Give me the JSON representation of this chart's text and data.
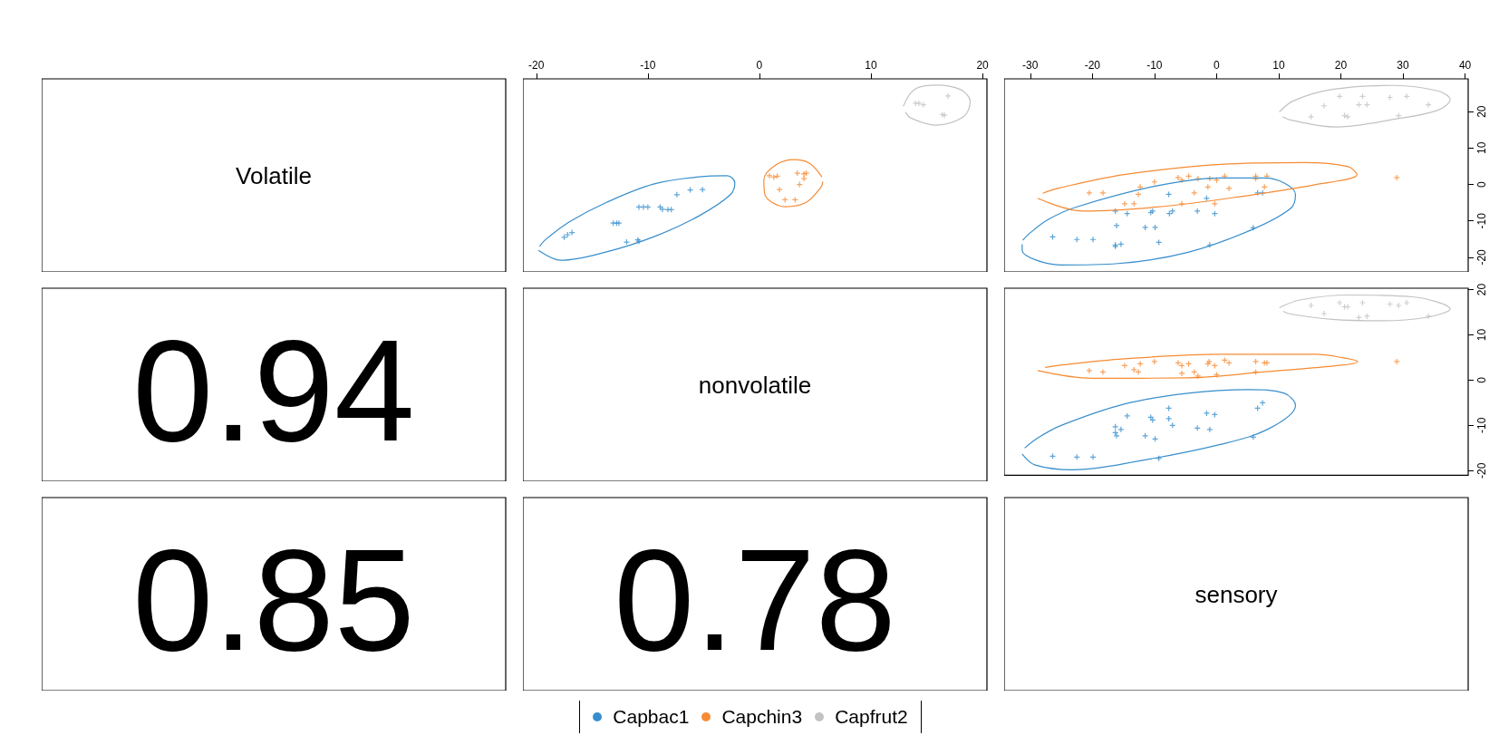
{
  "chart_data": [
    {
      "type": "other",
      "title": "Volatile"
    },
    {
      "type": "scatter",
      "marker": "cross",
      "legend": "bottom",
      "tick_labels": "x",
      "xlim": [
        -21.2,
        20.4
      ],
      "xticks": [
        -20,
        -10,
        0,
        10,
        20
      ],
      "ylim": [
        -24,
        29
      ],
      "yticks": [
        -20,
        -10,
        0,
        10,
        20
      ],
      "series": [
        {
          "name": "Capbac1",
          "color": "#388ecc",
          "x": [
            -17.5,
            -17.2,
            -16.8,
            -13.1,
            -12.8,
            -12.6,
            -11.9,
            -10.9,
            -10.8,
            -10.8,
            -10.4,
            -10.0,
            -8.9,
            -8.7,
            -8.2,
            -7.9,
            -7.4,
            -6.2,
            -5.1
          ],
          "values": [
            -14.5,
            -13.8,
            -13.2,
            -10.6,
            -10.6,
            -10.6,
            -15.8,
            -15.2,
            -15.6,
            -6.2,
            -6.2,
            -6.2,
            -6.2,
            -6.8,
            -6.9,
            -6.9,
            -2.8,
            -1.5,
            -1.4
          ]
        },
        {
          "name": "Capchin3",
          "color": "#f68b33",
          "x": [
            0.9,
            1.3,
            1.6,
            3.4,
            4.0,
            4.2,
            4.0,
            3.6,
            1.8,
            2.3,
            3.2
          ],
          "values": [
            2.4,
            2.0,
            2.3,
            3.1,
            2.9,
            3.1,
            1.6,
            0.0,
            -1.4,
            -4.2,
            -4.2
          ]
        },
        {
          "name": "Capfrut2",
          "color": "#c2c2c2",
          "x": [
            14.0,
            14.3,
            14.7,
            16.9,
            16.4,
            16.6
          ],
          "values": [
            22.3,
            22.3,
            21.9,
            24.3,
            19.2,
            19.0
          ]
        },
        {
          "type": "line",
          "marker": "none",
          "color": "#388ecc",
          "x": [
            -19.8,
            -17.8,
            -13.7,
            -9.5,
            -5.4,
            -2.6,
            -2.2,
            -2.9,
            -5.4,
            -9.5,
            -13.7,
            -17.0,
            -19.2,
            -19.7
          ],
          "values": [
            -18.1,
            -20.8,
            -18.5,
            -14.4,
            -8.6,
            -2.8,
            0.5,
            2.4,
            2.1,
            0.1,
            -4.9,
            -10.2,
            -15.2,
            -17.0
          ]
        },
        {
          "type": "line",
          "marker": "none",
          "color": "#f68b33",
          "x": [
            5.6,
            4.5,
            3.1,
            1.5,
            0.4,
            0.5,
            2.3,
            4.2,
            5.5,
            5.7
          ],
          "values": [
            2.1,
            5.8,
            6.8,
            5.4,
            1.3,
            -2.8,
            -6.1,
            -4.9,
            -0.8,
            0.8
          ]
        },
        {
          "type": "line",
          "marker": "none",
          "color": "#c2c2c2",
          "x": [
            12.9,
            13.9,
            15.8,
            18.0,
            18.9,
            18.3,
            15.8,
            13.6,
            13.1
          ],
          "values": [
            21.5,
            26.1,
            27.3,
            26.1,
            22.8,
            18.6,
            16.3,
            18.2,
            19.9
          ]
        }
      ]
    },
    {
      "type": "scatter",
      "marker": "cross",
      "xlim": [
        -34.2,
        40.5
      ],
      "xticks": [
        -30,
        -20,
        -10,
        0,
        10,
        20,
        30,
        40
      ],
      "ylim": [
        -24,
        29
      ],
      "yticks": [
        -20,
        -10,
        0,
        10,
        20
      ],
      "series": [
        {
          "color": "#388ecc",
          "x": [
            -26.4,
            -22.5,
            -19.9,
            -16.3,
            -16.3,
            -15.4,
            -16.1,
            -16.3,
            -14.4,
            -11.5,
            -9.9,
            -10.6,
            -10.3,
            -9.3,
            -7.7,
            -7.6,
            -7.1,
            -3.1,
            -1.6,
            -0.3,
            -1.1,
            5.9,
            6.6,
            7.4
          ],
          "values": [
            -14.4,
            -15.1,
            -15.1,
            -17.0,
            -16.6,
            -16.4,
            -11.3,
            -7.3,
            -8.0,
            -11.8,
            -11.8,
            -7.7,
            -7.3,
            -15.9,
            -2.7,
            -8.0,
            -7.3,
            -7.3,
            -3.8,
            -8.0,
            -16.6,
            -11.9,
            -2.3,
            -2.3
          ]
        },
        {
          "color": "#f68b33",
          "x": [
            -20.5,
            -18.3,
            -14.8,
            -13.3,
            -12.6,
            -12.3,
            -10.0,
            -6.2,
            -5.6,
            -4.5,
            -5.6,
            -3.6,
            -3.0,
            -1.4,
            -1.1,
            -0.3,
            0.0,
            1.3,
            2.0,
            6.3,
            6.3,
            8.1,
            7.7,
            29.0
          ],
          "values": [
            -2.3,
            -2.3,
            -5.3,
            -5.3,
            -2.7,
            -0.7,
            0.7,
            1.9,
            1.2,
            2.3,
            -5.3,
            -2.3,
            1.6,
            -0.7,
            1.6,
            -5.3,
            1.2,
            2.3,
            -1.1,
            2.3,
            1.6,
            2.3,
            -0.7,
            1.9
          ]
        },
        {
          "color": "#c2c2c2",
          "x": [
            15.2,
            17.3,
            19.8,
            20.6,
            21.1,
            22.9,
            23.5,
            24.2,
            27.9,
            29.3,
            30.6,
            34.1
          ],
          "values": [
            18.6,
            21.6,
            24.2,
            18.9,
            18.6,
            21.9,
            24.2,
            21.9,
            23.9,
            18.9,
            24.2,
            21.9
          ]
        },
        {
          "type": "line",
          "marker": "none",
          "color": "#388ecc",
          "x": [
            -31.3,
            -31.3,
            -25.2,
            -15.9,
            -4.6,
            5.7,
            11.9,
            12.7,
            10.9,
            7.8,
            0.6,
            -9.7,
            -22.6,
            -27.2,
            -30.3,
            -31.2
          ],
          "values": [
            -16.4,
            -18.1,
            -22.1,
            -21.7,
            -18.6,
            -12.4,
            -6.6,
            -2.7,
            0.4,
            1.8,
            1.8,
            -0.4,
            -6.2,
            -9.7,
            -13.7,
            -15.3
          ]
        },
        {
          "type": "line",
          "marker": "none",
          "color": "#f68b33",
          "x": [
            -28.8,
            -21.6,
            -9.7,
            3.1,
            16.0,
            22.6,
            21.2,
            14.0,
            0.6,
            -14.9,
            -25.2,
            -28.0
          ],
          "values": [
            -3.8,
            -7.3,
            -6.2,
            -3.5,
            0.0,
            2.7,
            4.9,
            6.0,
            5.5,
            2.7,
            -0.9,
            -2.4
          ]
        },
        {
          "type": "line",
          "marker": "none",
          "color": "#c2c2c2",
          "x": [
            10.1,
            12.4,
            18.6,
            28.4,
            35.6,
            37.6,
            35.6,
            28.9,
            19.1,
            11.9,
            10.6
          ],
          "values": [
            19.9,
            23.0,
            26.1,
            27.2,
            25.7,
            23.3,
            20.4,
            18.0,
            15.8,
            17.7,
            18.6
          ]
        }
      ]
    },
    {
      "type": "other",
      "annotations": [
        "0.94"
      ]
    },
    {
      "type": "other",
      "title": "nonvolatile"
    },
    {
      "type": "scatter",
      "marker": "cross",
      "tick_labels": "y",
      "xlim": [
        -34.2,
        40.5
      ],
      "xticks": [
        -30,
        -20,
        -10,
        0,
        10,
        20,
        30,
        40
      ],
      "ylim": [
        -21,
        20.3
      ],
      "yticks": [
        -20,
        -10,
        0,
        10,
        20
      ],
      "series": [
        {
          "color": "#388ecc",
          "x": [
            -26.4,
            -22.5,
            -19.9,
            -16.3,
            -16.3,
            -16.1,
            -15.4,
            -14.4,
            -11.5,
            -10.6,
            -10.3,
            -9.9,
            -9.3,
            -7.7,
            -7.7,
            -7.1,
            -3.1,
            -1.6,
            -0.3,
            -1.1,
            5.9,
            6.6,
            7.4
          ],
          "values": [
            -16.8,
            -17.0,
            -17.0,
            -10.3,
            -11.6,
            -12.3,
            -10.9,
            -7.9,
            -12.3,
            -8.2,
            -8.8,
            -13.0,
            -17.3,
            -6.2,
            -8.5,
            -10.0,
            -10.6,
            -7.3,
            -7.6,
            -10.9,
            -12.6,
            -6.2,
            -5.0
          ]
        },
        {
          "color": "#f68b33",
          "x": [
            -20.5,
            -18.3,
            -14.8,
            -13.3,
            -12.6,
            -12.3,
            -10.0,
            -6.2,
            -5.6,
            -4.5,
            -5.6,
            -3.6,
            -3.0,
            -1.4,
            -1.2,
            -0.3,
            0.0,
            1.3,
            2.0,
            6.3,
            6.3,
            7.7,
            8.1,
            29.0
          ],
          "values": [
            2.1,
            1.8,
            3.2,
            2.3,
            1.8,
            3.6,
            4.1,
            3.8,
            3.2,
            3.6,
            1.5,
            1.8,
            0.9,
            3.6,
            4.1,
            3.2,
            1.2,
            4.4,
            3.8,
            4.1,
            1.8,
            3.8,
            3.8,
            4.1
          ]
        },
        {
          "color": "#c2c2c2",
          "x": [
            15.2,
            17.3,
            19.8,
            20.6,
            21.1,
            22.9,
            23.5,
            24.2,
            27.9,
            29.3,
            30.6,
            34.1
          ],
          "values": [
            16.5,
            14.7,
            17.1,
            16.2,
            16.2,
            13.8,
            17.1,
            14.1,
            16.8,
            16.5,
            17.1,
            14.1
          ]
        },
        {
          "type": "line",
          "marker": "none",
          "color": "#388ecc",
          "x": [
            -31.3,
            -29.3,
            -23.1,
            -12.3,
            0.6,
            8.3,
            12.7,
            10.9,
            5.2,
            -4.6,
            -14.9,
            -25.2,
            -28.8,
            -30.9
          ],
          "values": [
            -16.3,
            -18.7,
            -19.8,
            -17.8,
            -14.2,
            -10.8,
            -5.6,
            -2.9,
            -2.1,
            -2.9,
            -5.3,
            -10.1,
            -12.8,
            -15.0
          ]
        },
        {
          "type": "line",
          "marker": "none",
          "color": "#f68b33",
          "x": [
            -28.8,
            -20.0,
            -4.6,
            8.3,
            20.1,
            22.7,
            20.1,
            16.0,
            0.6,
            -14.9,
            -25.2,
            -27.6
          ],
          "values": [
            2.1,
            0.4,
            0.5,
            1.9,
            3.3,
            4.1,
            5.0,
            5.7,
            5.7,
            4.7,
            3.3,
            2.8
          ]
        },
        {
          "type": "line",
          "marker": "none",
          "color": "#c2c2c2",
          "x": [
            10.1,
            13.4,
            21.2,
            31.5,
            37.6,
            34.0,
            26.3,
            18.6,
            11.9,
            10.7
          ],
          "values": [
            16.0,
            17.7,
            18.8,
            18.4,
            15.7,
            13.9,
            13.1,
            13.4,
            14.6,
            15.2
          ]
        }
      ]
    },
    {
      "type": "other",
      "annotations": [
        "0.85"
      ]
    },
    {
      "type": "other",
      "annotations": [
        "0.78"
      ]
    },
    {
      "type": "other",
      "title": "sensory"
    }
  ]
}
